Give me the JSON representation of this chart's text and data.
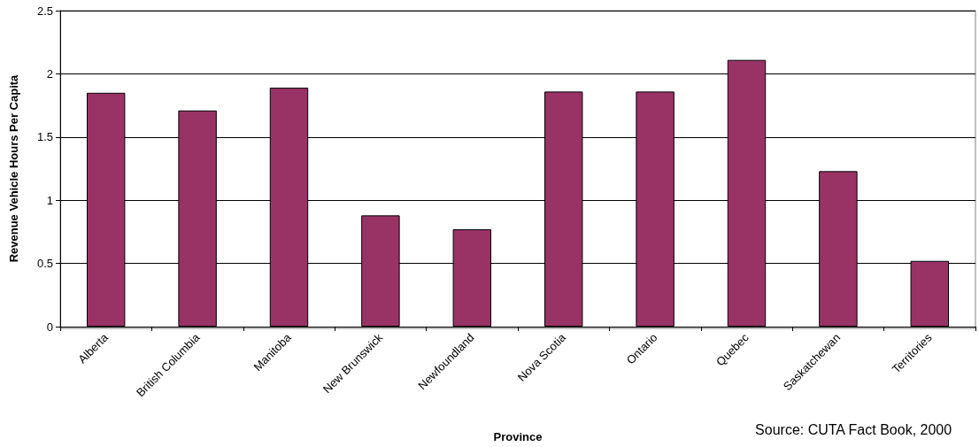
{
  "chart_data": {
    "type": "bar",
    "xlabel": "Province",
    "ylabel": "Revenue Vehicle Hours Per Capita",
    "categories": [
      "Alberta",
      "British Columbia",
      "Manitoba",
      "New Brunswick",
      "Newfoundland",
      "Nova Scotia",
      "Ontario",
      "Quebec",
      "Saskatchewan",
      "Territories"
    ],
    "values": [
      1.85,
      1.71,
      1.89,
      0.88,
      0.77,
      1.86,
      1.86,
      2.11,
      1.23,
      0.52
    ],
    "color": "#993366",
    "ylim": [
      0,
      2.5
    ],
    "yticks": [
      0,
      0.5,
      1,
      1.5,
      2,
      2.5
    ],
    "grid": "y",
    "annotations": [
      "Source: CUTA Fact Book, 2000"
    ]
  }
}
